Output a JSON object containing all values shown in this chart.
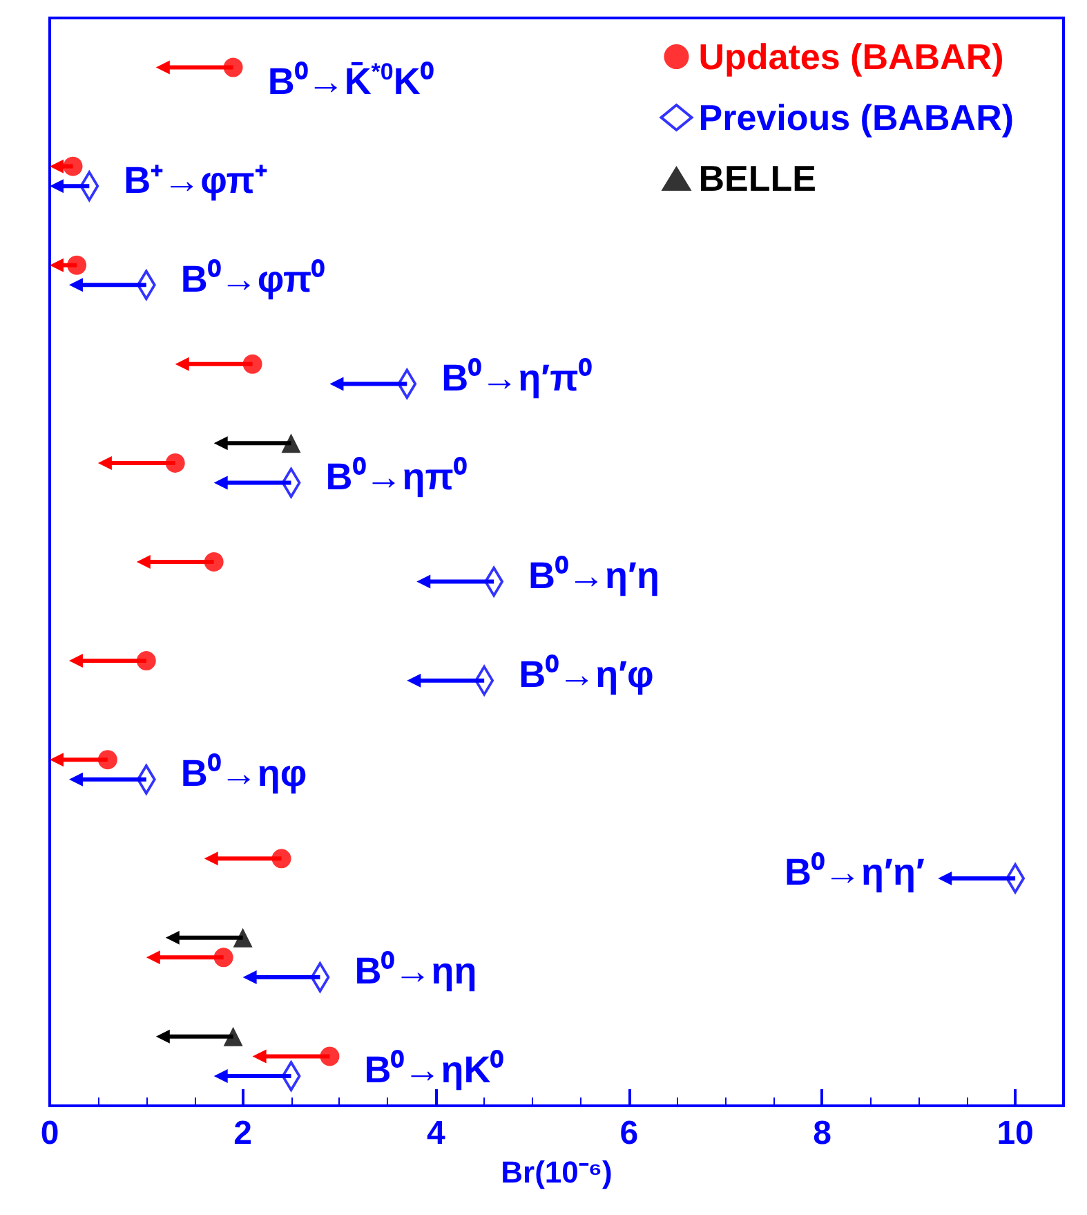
{
  "chart_data": {
    "type": "scatter",
    "xlabel": "Br(10⁻⁶)",
    "categories": [
      "B⁰→K̄$^{*0}$K⁰",
      "B⁺→φπ⁺",
      "B⁰→φπ⁰",
      "B⁰→η′π⁰",
      "B⁰→ηπ⁰",
      "B⁰→η′η",
      "B⁰→η′φ",
      "B⁰→ηφ",
      "B⁰→η′η′",
      "B⁰→ηη",
      "B⁰→ηK⁰"
    ],
    "series": [
      {
        "name": "Updates (BABAR)",
        "color": "#ff0000",
        "marker": "circle",
        "values": [
          1.9,
          0.24,
          0.28,
          2.1,
          1.3,
          1.7,
          1.0,
          0.6,
          2.4,
          1.8,
          2.9
        ]
      },
      {
        "name": "Previous (BABAR)",
        "color": "#0000ff",
        "marker": "diamond",
        "values": [
          null,
          0.41,
          1.0,
          3.7,
          2.5,
          4.6,
          4.5,
          1.0,
          10,
          2.8,
          2.5
        ]
      },
      {
        "name": "BELLE",
        "color": "#000000",
        "marker": "triangle",
        "values": [
          null,
          null,
          null,
          null,
          2.5,
          null,
          null,
          null,
          null,
          2.0,
          1.9
        ]
      }
    ],
    "xlim": [
      0,
      10.5
    ],
    "xticks": [
      0,
      2,
      4,
      6,
      8,
      10
    ],
    "grid": false,
    "orientation": "horizontal",
    "legend": "top right",
    "tick_labels": "x"
  }
}
